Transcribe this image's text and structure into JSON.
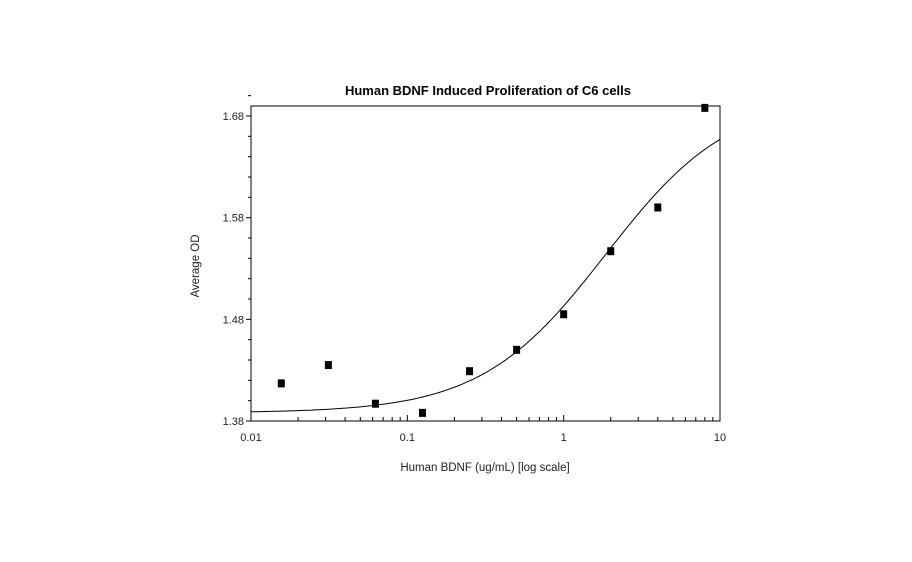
{
  "chart_data": {
    "type": "scatter",
    "title": "Human BDNF Induced Proliferation of C6 cells",
    "xlabel": "Human BDNF (ug/mL) [log scale]",
    "ylabel": "Average OD",
    "xscale": "log",
    "xlim": [
      0.01,
      10
    ],
    "ylim": [
      1.38,
      1.7
    ],
    "xticks": [
      0.01,
      0.1,
      1,
      10
    ],
    "xtick_labels": [
      "0.01",
      "0.1",
      "1",
      "10"
    ],
    "yticks": [
      1.38,
      1.48,
      1.58,
      1.68
    ],
    "ytick_labels": [
      "1.38",
      "1.48",
      "1.58",
      "1.68"
    ],
    "grid": false,
    "marker_color": "#000000",
    "points": [
      {
        "x": 0.015625,
        "y": 1.417
      },
      {
        "x": 0.03125,
        "y": 1.435
      },
      {
        "x": 0.0625,
        "y": 1.397
      },
      {
        "x": 0.125,
        "y": 1.388
      },
      {
        "x": 0.25,
        "y": 1.429
      },
      {
        "x": 0.5,
        "y": 1.45
      },
      {
        "x": 1,
        "y": 1.485
      },
      {
        "x": 2,
        "y": 1.547
      },
      {
        "x": 4,
        "y": 1.59
      },
      {
        "x": 8,
        "y": 1.688
      }
    ],
    "fit": {
      "model": "4PL",
      "bottom": 1.388,
      "top": 1.7,
      "ec50": 1.86,
      "hill": 1.09
    }
  }
}
